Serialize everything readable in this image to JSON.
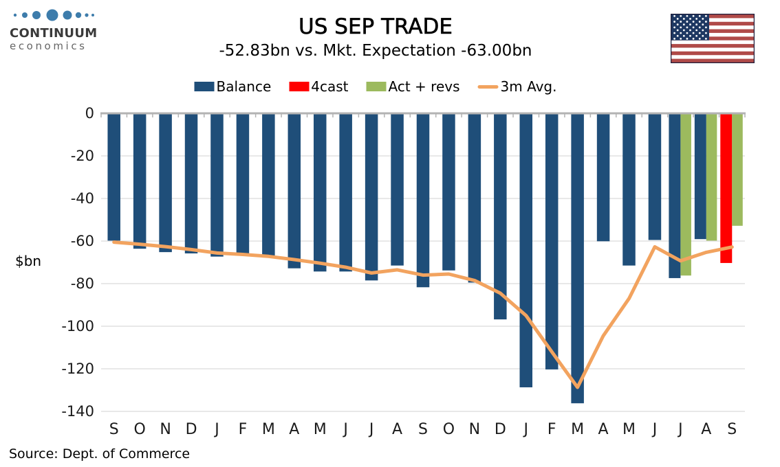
{
  "logo": {
    "brand": "CONTINUUM",
    "sub": "economics",
    "dot_color": "#3d7cab"
  },
  "header": {
    "title": "US SEP TRADE",
    "subtitle": "-52.83bn vs. Mkt. Expectation -63.00bn"
  },
  "legend": {
    "items": [
      {
        "label": "Balance",
        "color": "#1f4e79",
        "type": "box"
      },
      {
        "label": "4cast",
        "color": "#ff0000",
        "type": "box"
      },
      {
        "label": "Act + revs",
        "color": "#9cba5e",
        "type": "box"
      },
      {
        "label": "3m Avg.",
        "color": "#f2a35f",
        "type": "line"
      }
    ]
  },
  "y_axis": {
    "label": "$bn",
    "ticks": [
      0,
      -20,
      -40,
      -60,
      -80,
      -100,
      -120,
      -140
    ]
  },
  "source": "Source: Dept. of Commerce",
  "flag": {
    "name": "us-flag",
    "red": "#b04a48",
    "blue": "#1e3862",
    "border": "#1f1f3d"
  },
  "chart_data": {
    "type": "bar",
    "title": "US SEP TRADE",
    "subtitle": "-52.83bn vs. Mkt. Expectation -63.00bn",
    "ylabel": "$bn",
    "ylim": [
      -145,
      0
    ],
    "grid": "horizontal",
    "legend_position": "top",
    "categories": [
      "S",
      "O",
      "N",
      "D",
      "J",
      "F",
      "M",
      "A",
      "M",
      "J",
      "J",
      "A",
      "S",
      "O",
      "N",
      "D",
      "J",
      "F",
      "M",
      "A",
      "M",
      "J",
      "J",
      "A",
      "S"
    ],
    "series": [
      {
        "name": "Balance",
        "type": "bar",
        "color": "#1f4e79",
        "values": [
          -59.8,
          -63.6,
          -65.2,
          -65.8,
          -67.3,
          -66.2,
          -67.3,
          -72.8,
          -74.3,
          -74.3,
          -78.5,
          -71.5,
          -81.7,
          -73.8,
          -79.5,
          -96.8,
          -128.7,
          -120.3,
          -136.2,
          -60.1,
          -71.5,
          -59.5,
          -77.4,
          -59.1,
          null
        ]
      },
      {
        "name": "4cast",
        "type": "bar",
        "color": "#ff0000",
        "values": [
          null,
          null,
          null,
          null,
          null,
          null,
          null,
          null,
          null,
          null,
          null,
          null,
          null,
          null,
          null,
          null,
          null,
          null,
          null,
          null,
          null,
          null,
          null,
          null,
          -70.3
        ]
      },
      {
        "name": "Act + revs",
        "type": "bar",
        "color": "#9cba5e",
        "values": [
          null,
          null,
          null,
          null,
          null,
          null,
          null,
          null,
          null,
          null,
          null,
          null,
          null,
          null,
          null,
          null,
          null,
          null,
          null,
          null,
          null,
          null,
          -76.2,
          -59.8,
          -52.83
        ]
      },
      {
        "name": "3m Avg.",
        "type": "line",
        "color": "#f2a35f",
        "values": [
          -60.5,
          -61.5,
          -62.6,
          -64.0,
          -65.6,
          -66.3,
          -67.2,
          -68.7,
          -70.4,
          -72.3,
          -75.0,
          -73.5,
          -76.0,
          -75.5,
          -78.5,
          -84.5,
          -95.0,
          -112.0,
          -128.7,
          -104.5,
          -87.0,
          -62.7,
          -69.3,
          -65.3,
          -62.8
        ]
      }
    ]
  }
}
